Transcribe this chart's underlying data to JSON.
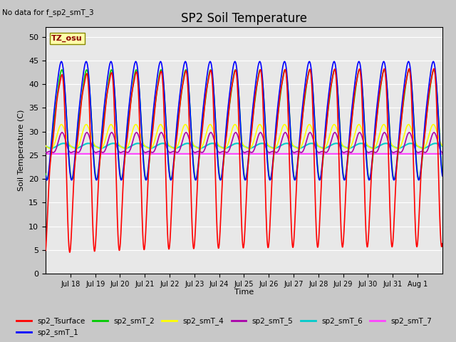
{
  "title": "SP2 Soil Temperature",
  "subtitle": "No data for f_sp2_smT_3",
  "xlabel": "Time",
  "ylabel": "Soil Temperature (C)",
  "tz_label": "TZ_osu",
  "ylim": [
    0,
    52
  ],
  "yticks": [
    0,
    5,
    10,
    15,
    20,
    25,
    30,
    35,
    40,
    45,
    50
  ],
  "series": {
    "sp2_Tsurface": {
      "color": "#ff0000",
      "lw": 1.2
    },
    "sp2_smT_1": {
      "color": "#0000ff",
      "lw": 1.2
    },
    "sp2_smT_2": {
      "color": "#00cc00",
      "lw": 1.2
    },
    "sp2_smT_4": {
      "color": "#ffff00",
      "lw": 1.2
    },
    "sp2_smT_5": {
      "color": "#aa00aa",
      "lw": 1.2
    },
    "sp2_smT_6": {
      "color": "#00cccc",
      "lw": 1.5
    },
    "sp2_smT_7": {
      "color": "#ff44ff",
      "lw": 1.5
    }
  },
  "n_days": 16,
  "points_per_day": 144,
  "x_tick_start_day": 18,
  "x_tick_end_day": 33
}
